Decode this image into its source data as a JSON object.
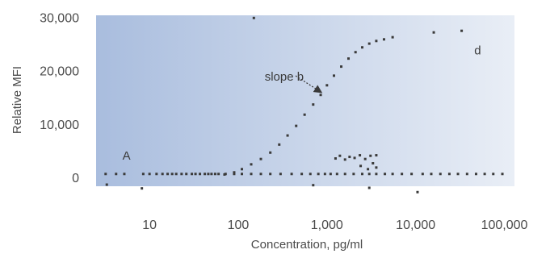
{
  "chart_data": {
    "type": "scatter",
    "xlabel": "Concentration, pg/ml",
    "ylabel": "Relative MFI",
    "xscale": "log",
    "xlim": [
      2.5,
      130000
    ],
    "ylim": [
      -1500,
      30500
    ],
    "grid": false,
    "background_gradient": [
      "#a9bdde",
      "#e9eef6"
    ],
    "point_color": "#3a3a3a",
    "x_ticks": [
      {
        "value": 10,
        "label": "10"
      },
      {
        "value": 100,
        "label": "100"
      },
      {
        "value": 1000,
        "label": "1,000"
      },
      {
        "value": 10000,
        "label": "10,000"
      },
      {
        "value": 100000,
        "label": "100,000"
      }
    ],
    "y_ticks": [
      {
        "value": 0,
        "label": "0"
      },
      {
        "value": 10000,
        "label": "10,000"
      },
      {
        "value": 20000,
        "label": "20,000"
      },
      {
        "value": 30000,
        "label": "30,000"
      }
    ],
    "series": [
      {
        "kind": "sigmoid",
        "x": [
          70,
          90,
          110,
          140,
          180,
          230,
          290,
          360,
          450,
          560,
          700,
          850,
          1000,
          1200,
          1450,
          1750,
          2100,
          2500,
          3000,
          3600,
          4400,
          5500,
          16000,
          33000
        ],
        "values": [
          700,
          1100,
          1700,
          2600,
          3600,
          4800,
          6300,
          8000,
          9800,
          11900,
          13800,
          15600,
          17400,
          19200,
          20900,
          22400,
          23600,
          24500,
          25200,
          25700,
          26000,
          26400,
          27300,
          27600
        ]
      },
      {
        "kind": "baseline",
        "x": [
          3.2,
          4.2,
          5.2,
          8.5,
          10,
          12,
          14,
          16,
          18,
          20,
          23,
          26,
          30,
          33,
          37,
          42,
          46,
          50,
          55,
          60,
          72,
          90,
          110,
          140,
          180,
          230,
          300,
          400,
          520,
          650,
          800,
          950,
          1100,
          1300,
          1600,
          2000,
          2500,
          3000,
          3600,
          4500,
          5500,
          7000,
          9000,
          12000,
          15000,
          19000,
          24000,
          30000,
          38000,
          48000,
          60000,
          75000,
          95000
        ],
        "values": [
          800,
          800,
          800,
          800,
          800,
          800,
          800,
          800,
          800,
          800,
          800,
          800,
          800,
          800,
          800,
          800,
          800,
          800,
          800,
          800,
          800,
          800,
          800,
          800,
          800,
          800,
          800,
          800,
          800,
          800,
          800,
          800,
          800,
          800,
          800,
          800,
          800,
          800,
          800,
          800,
          800,
          800,
          800,
          800,
          800,
          800,
          800,
          800,
          800,
          800,
          800,
          800,
          800
        ]
      },
      {
        "kind": "scattered",
        "x": [
          1250,
          1400,
          1600,
          1800,
          2050,
          2350,
          2700,
          3100,
          3300,
          3600,
          3600,
          2900,
          2400
        ],
        "values": [
          3700,
          4200,
          3500,
          4000,
          3800,
          4300,
          3600,
          4200,
          2800,
          2000,
          4300,
          1700,
          2300
        ]
      },
      {
        "kind": "below-axis",
        "x": [
          3.3,
          8.2,
          700,
          3000,
          10500
        ],
        "values": [
          -1200,
          -1900,
          -1300,
          -1800,
          -2600
        ]
      }
    ],
    "annotations": [
      {
        "text": "slope b",
        "x": 330,
        "y": 18300
      },
      {
        "text": "A",
        "x": 5.5,
        "y": 3500
      },
      {
        "text": "d",
        "x": 50000,
        "y": 23200
      }
    ]
  }
}
